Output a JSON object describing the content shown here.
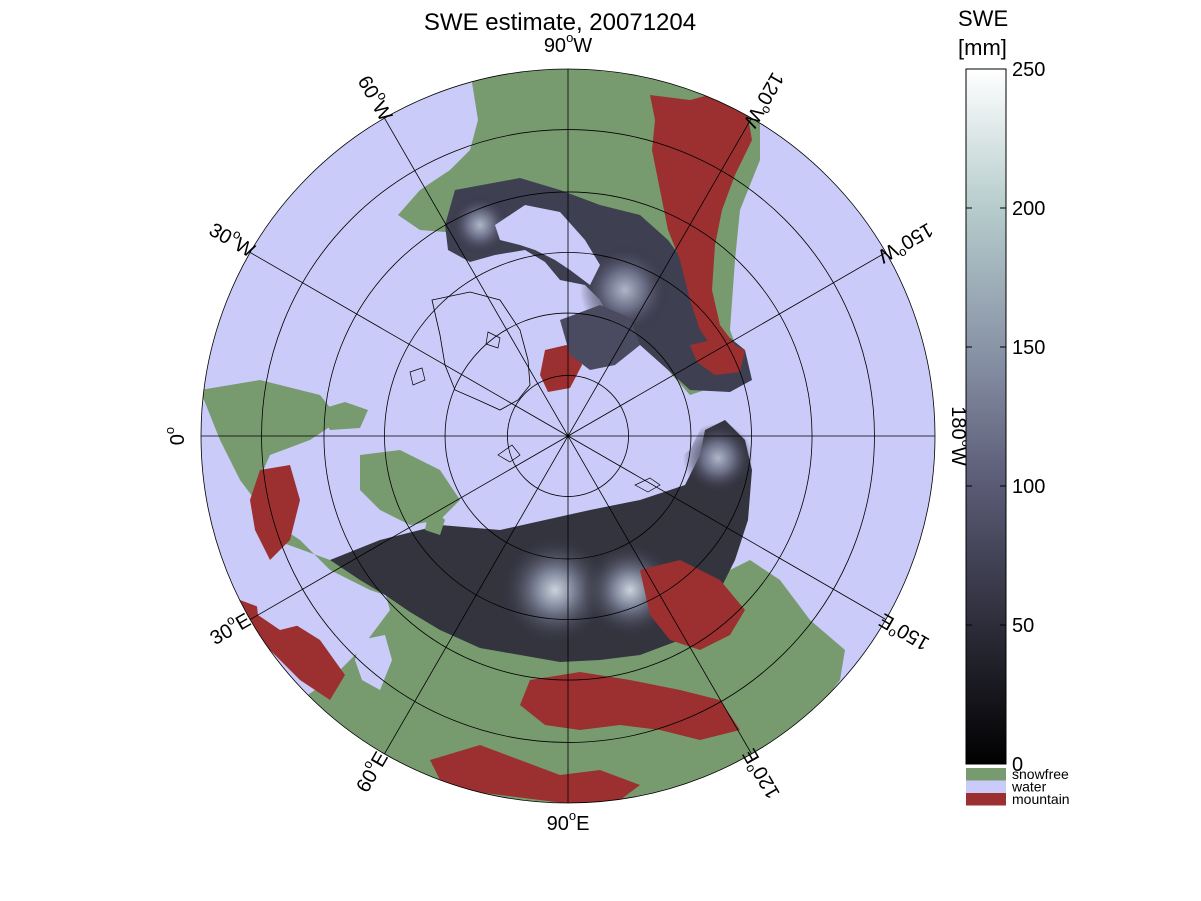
{
  "title": "SWE estimate, 20071204",
  "colorbar": {
    "title_line1": "SWE",
    "title_line2": "[mm]",
    "ticks": [
      "0",
      "50",
      "100",
      "150",
      "200",
      "250"
    ],
    "tick_values": [
      0,
      50,
      100,
      150,
      200,
      250
    ],
    "range": [
      0,
      250
    ],
    "gradient": [
      "#000000",
      "#2d2d3a",
      "#5a5a75",
      "#8a95a8",
      "#b6cccc",
      "#ffffff"
    ]
  },
  "legend": [
    {
      "label": "snowfree",
      "color": "#779b6f"
    },
    {
      "label": "water",
      "color": "#cbcbf9"
    },
    {
      "label": "mountain",
      "color": "#9c3030"
    }
  ],
  "longitude_labels": [
    {
      "deg": "90",
      "hem": "W",
      "lon": -90
    },
    {
      "deg": "120",
      "hem": "W",
      "lon": -120
    },
    {
      "deg": "150",
      "hem": "W",
      "lon": -150
    },
    {
      "deg": "180",
      "hem": "W",
      "lon": 180
    },
    {
      "deg": "150",
      "hem": "E",
      "lon": 150
    },
    {
      "deg": "120",
      "hem": "E",
      "lon": 120
    },
    {
      "deg": "90",
      "hem": "E",
      "lon": 90
    },
    {
      "deg": "60",
      "hem": "E",
      "lon": 60
    },
    {
      "deg": "30",
      "hem": "E",
      "lon": 30
    },
    {
      "deg": "0",
      "hem": "",
      "lon": 0
    },
    {
      "deg": "30",
      "hem": "W",
      "lon": -30
    },
    {
      "deg": "60",
      "hem": "W",
      "lon": -60
    }
  ],
  "colors": {
    "water": "#cbcbf9",
    "snowfree": "#779b6f",
    "mountain": "#9c3030",
    "snow_dark": "#2a2a36",
    "snow_mid": "#585a74",
    "snow_light": "#a9b3c4"
  }
}
